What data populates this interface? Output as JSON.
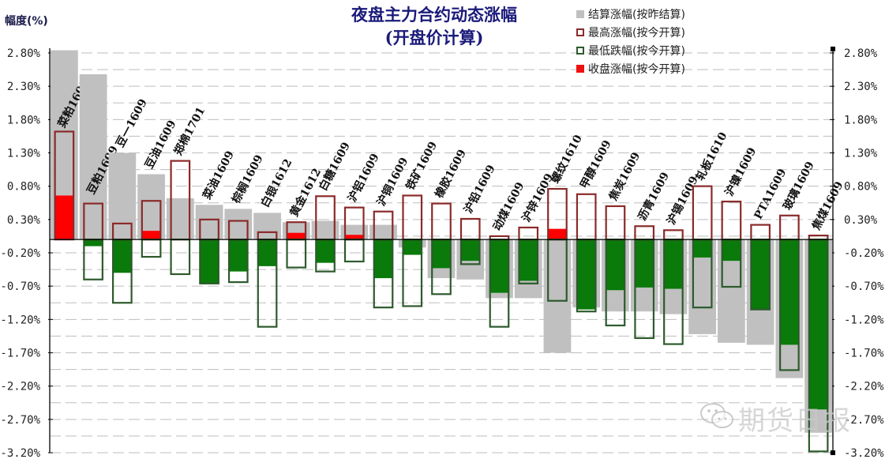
{
  "header": {
    "title_line1": "夜盘主力合约动态涨幅",
    "title_line2": "(开盘价计算)",
    "y_axis_label": "幅度(%)"
  },
  "legend": [
    {
      "label": "结算涨幅(按昨结算)",
      "style": "gray-fill",
      "color": "#c0c0c0"
    },
    {
      "label": "最高涨幅(按今开算)",
      "style": "red-outline",
      "color": "#8b2020"
    },
    {
      "label": "最低跌幅(按今开算)",
      "style": "green-outline",
      "color": "#2e5a2e"
    },
    {
      "label": "收盘涨幅(按今开算)",
      "style": "red-fill",
      "color": "#ee1111"
    }
  ],
  "watermark": "期货日报",
  "colors": {
    "settle": "#c0c0c0",
    "high_outline": "#8b2a2a",
    "low_outline": "#2d5a2d",
    "close_up": "#ff0000",
    "close_down": "#0a7a0a",
    "grid": "#bdbdbd",
    "title": "#1a1a7a"
  },
  "chart_data": {
    "type": "bar",
    "title": "夜盘主力合约动态涨幅(开盘价计算)",
    "xlabel": "",
    "ylabel": "幅度(%)",
    "ylim": [
      -3.2,
      2.8
    ],
    "yticks": [
      "2.80%",
      "2.30%",
      "1.80%",
      "1.30%",
      "0.80%",
      "0.30%",
      "-0.20%",
      "-0.70%",
      "-1.20%",
      "-1.70%",
      "-2.20%",
      "-2.70%",
      "-3.20%"
    ],
    "grid": true,
    "legend_position": "top-right",
    "categories": [
      "菜粕1609",
      "豆粕1609",
      "豆一1609",
      "豆油1609",
      "郑棉1701",
      "菜油1609",
      "棕榈1609",
      "白银1612",
      "黄金1612",
      "白糖1609",
      "沪铝1609",
      "沪铜1609",
      "铁矿1609",
      "橡胶1609",
      "沪铅1609",
      "动煤1609",
      "沪锌1609",
      "螺纹1610",
      "甲醇1609",
      "焦炭1609",
      "沥青1609",
      "沪锡1609",
      "轧板1610",
      "沪镍1609",
      "PTA1609",
      "玻璃1609",
      "焦煤1609"
    ],
    "series": [
      {
        "name": "结算涨幅(按昨结算)",
        "values": [
          2.84,
          2.48,
          1.3,
          0.98,
          0.62,
          0.52,
          0.46,
          0.4,
          0.26,
          0.28,
          0.22,
          0.22,
          -0.12,
          -0.58,
          -0.6,
          -0.88,
          -0.88,
          -1.7,
          -1.02,
          -1.08,
          -1.08,
          -1.12,
          -1.42,
          -1.55,
          -1.58,
          -2.08,
          -2.9
        ]
      },
      {
        "name": "最高涨幅(按今开算)",
        "values": [
          1.62,
          0.54,
          0.24,
          0.58,
          1.18,
          0.3,
          0.28,
          0.11,
          0.26,
          0.65,
          0.48,
          0.42,
          0.66,
          0.54,
          0.31,
          0.05,
          0.18,
          0.76,
          0.68,
          0.5,
          0.2,
          0.14,
          0.8,
          0.57,
          0.22,
          0.36,
          0.06
        ]
      },
      {
        "name": "最低跌幅(按今开算)",
        "values": [
          0.0,
          -0.6,
          -0.95,
          -0.26,
          -0.52,
          -0.66,
          -0.64,
          -1.31,
          -0.42,
          -0.48,
          -0.33,
          -1.02,
          -1.0,
          -0.82,
          -0.37,
          -1.31,
          -0.66,
          -0.92,
          -1.08,
          -1.29,
          -1.48,
          -1.57,
          -1.02,
          -0.71,
          -1.05,
          -1.96,
          -3.18
        ]
      },
      {
        "name": "收盘涨幅(按今开算)",
        "values": [
          0.66,
          -0.1,
          -0.5,
          0.13,
          0.0,
          -0.67,
          -0.48,
          -0.4,
          0.1,
          -0.35,
          0.07,
          -0.58,
          -0.23,
          -0.43,
          -0.32,
          -0.8,
          -0.62,
          0.16,
          -1.05,
          -0.76,
          -0.72,
          -0.74,
          -0.27,
          -0.32,
          -1.05,
          -1.58,
          -2.55
        ]
      }
    ]
  }
}
